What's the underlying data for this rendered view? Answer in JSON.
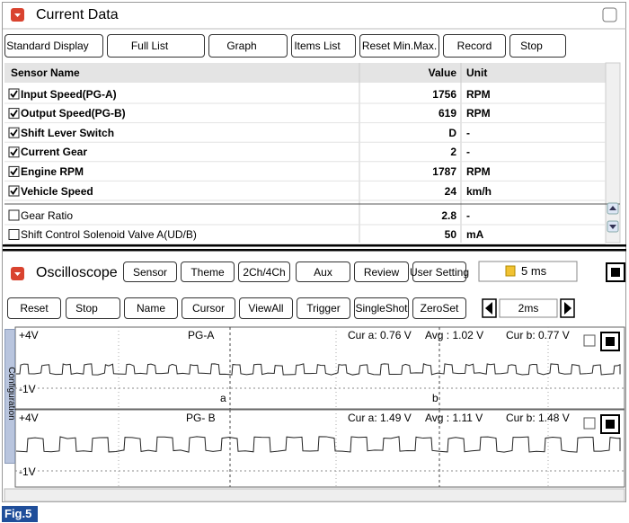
{
  "header": {
    "title": "Current Data"
  },
  "toolbar": [
    {
      "label": "Standard Display",
      "dropdown": true
    },
    {
      "label": "Full List",
      "dropdown": true
    },
    {
      "label": "Graph",
      "dropdown": true
    },
    {
      "label": "Items List",
      "dropdown": true
    },
    {
      "label": "Reset Min.Max.",
      "dropdown": false
    },
    {
      "label": "Record",
      "dropdown": false
    },
    {
      "label": "Stop",
      "dropdown": true
    }
  ],
  "table": {
    "columns": [
      "Sensor Name",
      "Value",
      "Unit"
    ],
    "rows": [
      {
        "name": "Input Speed(PG-A)",
        "value": 1756,
        "unit": "RPM",
        "checked": true
      },
      {
        "name": "Output Speed(PG-B)",
        "value": 619,
        "unit": "RPM",
        "checked": true
      },
      {
        "name": "Shift Lever Switch",
        "value": "D",
        "unit": "-",
        "checked": true
      },
      {
        "name": "Current Gear",
        "value": 2,
        "unit": "-",
        "checked": true
      },
      {
        "name": "Engine RPM",
        "value": 1787,
        "unit": "RPM",
        "checked": true
      },
      {
        "name": "Vehicle Speed",
        "value": 24,
        "unit": "km/h",
        "checked": true
      },
      {
        "name": "Gear Ratio",
        "value": 2.8,
        "unit": "-",
        "checked": false
      },
      {
        "name": "Shift Control Solenoid Valve A(UD/B)",
        "value": 50,
        "unit": "mA",
        "checked": false
      }
    ]
  },
  "oscilloscope": {
    "title": "Oscilloscope",
    "buttons": [
      "Sensor",
      "Theme",
      "2Ch/4Ch",
      "Aux",
      "Review",
      "User Setting"
    ],
    "time_display": "5 ms",
    "controls": [
      {
        "label": "Reset",
        "dropdown": false
      },
      {
        "label": "Stop",
        "dropdown": true
      },
      {
        "label": "Name",
        "dropdown": false
      },
      {
        "label": "Cursor",
        "dropdown": false
      },
      {
        "label": "ViewAll",
        "dropdown": false
      },
      {
        "label": "Trigger",
        "dropdown": false
      },
      {
        "label": "SingleShot",
        "dropdown": false
      },
      {
        "label": "ZeroSet",
        "dropdown": false
      }
    ],
    "time_div": "2ms",
    "side_tab": "Configuration",
    "cursor_labels": [
      "a",
      "b"
    ],
    "channels": [
      {
        "max": "+4V",
        "min": "-1V",
        "name": "PG-A",
        "cur_a": "Cur a: 0.76 V",
        "avg": "Avg : 1.02 V",
        "cur_b": "Cur b: 0.77 V"
      },
      {
        "max": "+4V",
        "min": "-1V",
        "name": "PG- B",
        "cur_a": "Cur a: 1.49 V",
        "avg": "Avg : 1.11 V",
        "cur_b": "Cur b: 1.48 V"
      }
    ]
  },
  "figure_label": "Fig.5"
}
